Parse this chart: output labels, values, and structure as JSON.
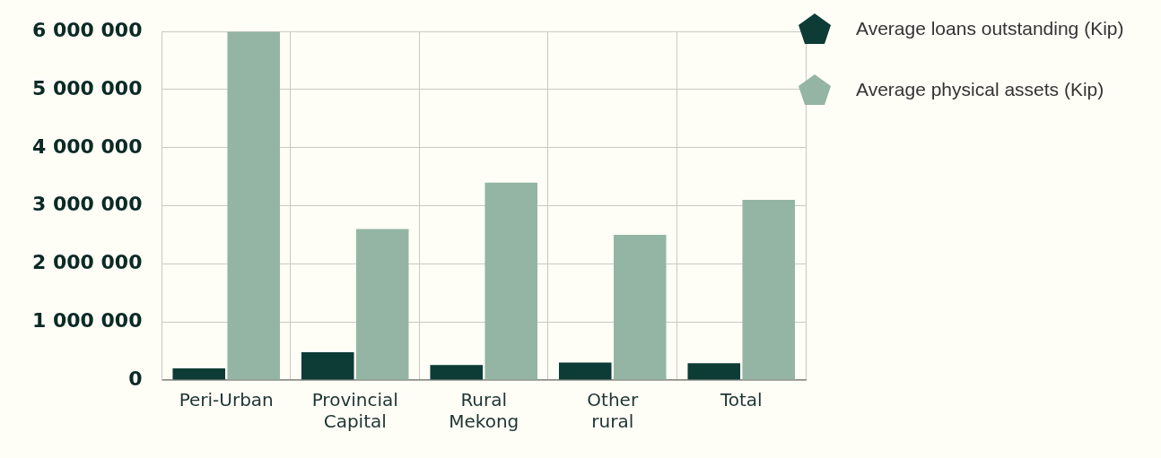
{
  "chart_data": {
    "type": "bar",
    "categories": [
      "Peri-Urban",
      "Provincial Capital",
      "Rural Mekong",
      "Other rural",
      "Total"
    ],
    "series": [
      {
        "name": "Average loans outstanding (Kip)",
        "color": "#0d3b35",
        "values": [
          200000,
          480000,
          260000,
          300000,
          290000
        ]
      },
      {
        "name": "Average physical assets (Kip)",
        "color": "#94b5a3",
        "values": [
          6000000,
          2600000,
          3400000,
          2500000,
          3100000
        ]
      }
    ],
    "ylim": [
      0,
      6000000
    ],
    "yticks": [
      0,
      {
        "value": 1000000,
        "label": "1 000 000"
      },
      {
        "value": 2000000,
        "label": "2 000 000"
      },
      {
        "value": 3000000,
        "label": "3 000 000"
      },
      {
        "value": 4000000,
        "label": "4 000 000"
      },
      {
        "value": 5000000,
        "label": "5 000 000"
      },
      {
        "value": 6000000,
        "label": "6 000 000"
      }
    ],
    "grid": true,
    "legend": "top right"
  }
}
